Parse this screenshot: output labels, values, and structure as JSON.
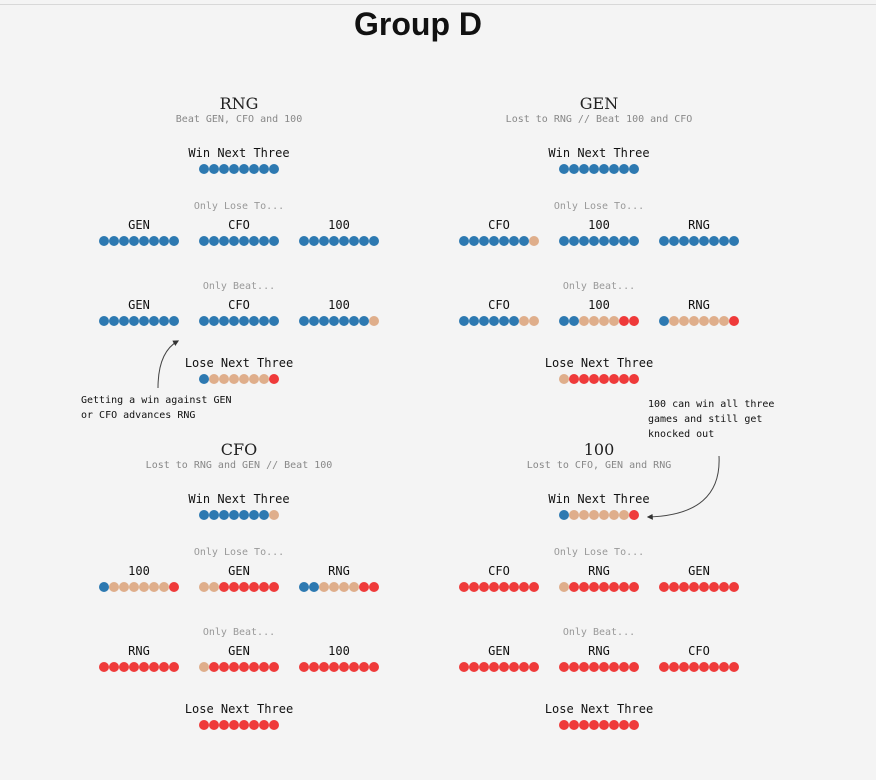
{
  "title": "Group D",
  "colors": {
    "W": "#2d79b1",
    "N": "#dfae8b",
    "L": "#ef3a3a"
  },
  "labels": {
    "win_next_three": "Win Next Three",
    "only_lose_to": "Only Lose To...",
    "only_beat": "Only Beat...",
    "lose_next_three": "Lose Next Three"
  },
  "teams": [
    {
      "name": "RNG",
      "subtitle": "Beat GEN, CFO and 100",
      "win_next_three": "WWWWWWWW",
      "only_lose_to": [
        {
          "opponent": "GEN",
          "dots": "WWWWWWWW"
        },
        {
          "opponent": "CFO",
          "dots": "WWWWWWWW"
        },
        {
          "opponent": "100",
          "dots": "WWWWWWWW"
        }
      ],
      "only_beat": [
        {
          "opponent": "GEN",
          "dots": "WWWWWWWW"
        },
        {
          "opponent": "CFO",
          "dots": "WWWWWWWW"
        },
        {
          "opponent": "100",
          "dots": "WWWWWWWN"
        }
      ],
      "lose_next_three": "WNNNNNNL"
    },
    {
      "name": "GEN",
      "subtitle": "Lost to RNG // Beat 100 and CFO",
      "win_next_three": "WWWWWWWW",
      "only_lose_to": [
        {
          "opponent": "CFO",
          "dots": "WWWWWWWN"
        },
        {
          "opponent": "100",
          "dots": "WWWWWWWW"
        },
        {
          "opponent": "RNG",
          "dots": "WWWWWWWW"
        }
      ],
      "only_beat": [
        {
          "opponent": "CFO",
          "dots": "WWWWWWNN"
        },
        {
          "opponent": "100",
          "dots": "WWNNNNLL"
        },
        {
          "opponent": "RNG",
          "dots": "WNNNNNNL"
        }
      ],
      "lose_next_three": "NLLLLLLL"
    },
    {
      "name": "CFO",
      "subtitle": "Lost to RNG and GEN // Beat 100",
      "win_next_three": "WWWWWWWN",
      "only_lose_to": [
        {
          "opponent": "100",
          "dots": "WNNNNNNL"
        },
        {
          "opponent": "GEN",
          "dots": "NNLLLLLL"
        },
        {
          "opponent": "RNG",
          "dots": "WWNNNNLL"
        }
      ],
      "only_beat": [
        {
          "opponent": "RNG",
          "dots": "LLLLLLLL"
        },
        {
          "opponent": "GEN",
          "dots": "NLLLLLLL"
        },
        {
          "opponent": "100",
          "dots": "LLLLLLLL"
        }
      ],
      "lose_next_three": "LLLLLLLL"
    },
    {
      "name": "100",
      "subtitle": "Lost to CFO, GEN and RNG",
      "win_next_three": "WNNNNNNL",
      "only_lose_to": [
        {
          "opponent": "CFO",
          "dots": "LLLLLLLL"
        },
        {
          "opponent": "RNG",
          "dots": "NLLLLLLL"
        },
        {
          "opponent": "GEN",
          "dots": "LLLLLLLL"
        }
      ],
      "only_beat": [
        {
          "opponent": "GEN",
          "dots": "LLLLLLLL"
        },
        {
          "opponent": "RNG",
          "dots": "LLLLLLLL"
        },
        {
          "opponent": "CFO",
          "dots": "LLLLLLLL"
        }
      ],
      "lose_next_three": "LLLLLLLL"
    }
  ],
  "annotations": [
    {
      "text": "Getting a win against GEN\nor CFO advances RNG"
    },
    {
      "text": "100 can win all three\ngames and still get\nknocked out"
    }
  ]
}
